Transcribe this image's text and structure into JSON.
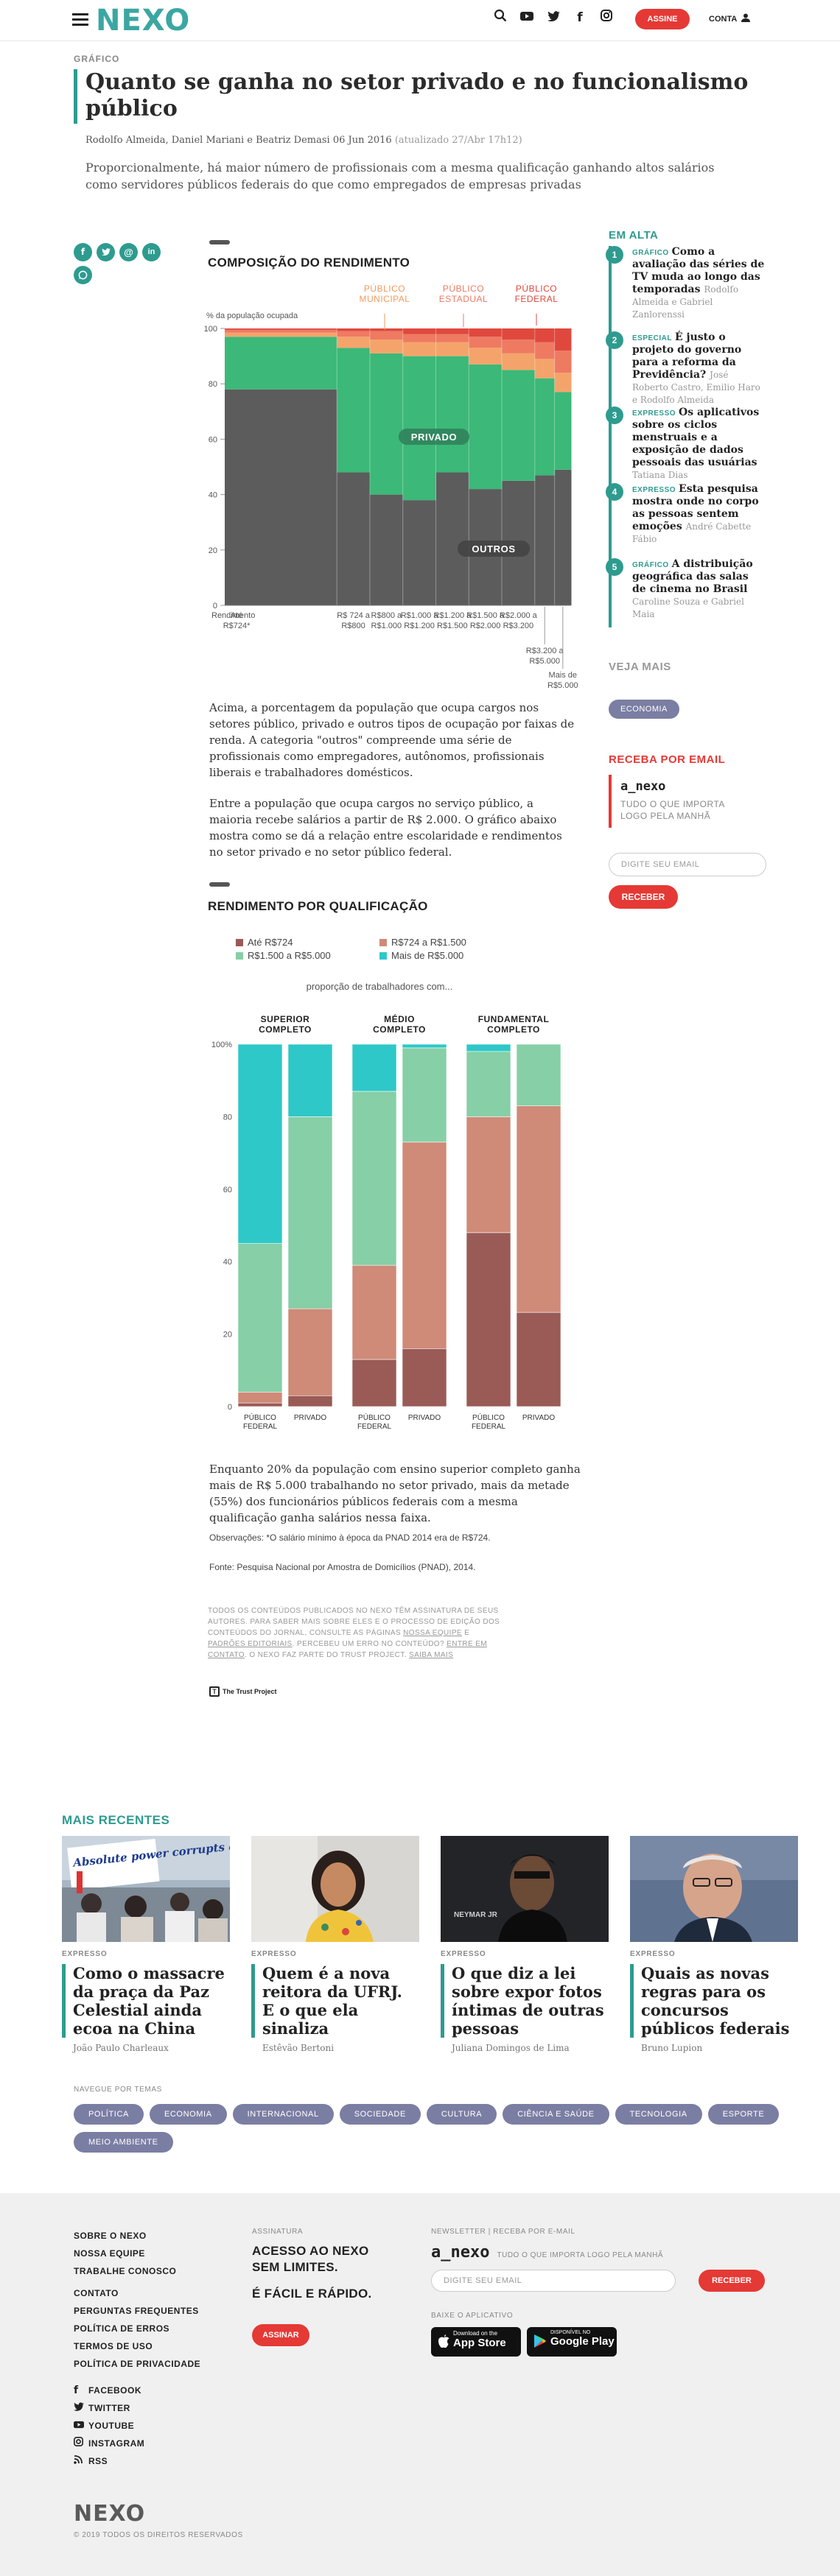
{
  "header": {
    "logo": "NEXO",
    "subscribe": "ASSINE",
    "account": "CONTA"
  },
  "article": {
    "kicker": "GRÁFICO",
    "title": "Quanto se ganha no setor privado e no funcionalismo público",
    "authors": "Rodolfo Almeida, Daniel Mariani e Beatriz Demasi",
    "date": "06 Jun 2016",
    "updated": "(atualizado 27/Abr 17h12)",
    "lead": "Proporcionalmente, há maior número de profissionais com a mesma qualificação ganhando altos salários como servidores públicos federais do que como empregados de empresas privadas",
    "chart1_title": "COMPOSIÇÃO DO RENDIMENTO",
    "chart2_title": "RENDIMENTO POR QUALIFICAÇÃO",
    "para1": "Acima, a porcentagem da população que ocupa cargos nos setores público, privado e outros tipos de ocupação por faixas de renda. A categoria \"outros\" compreende uma série de profissionais como empregadores, autônomos, profissionais liberais e trabalhadores domésticos.",
    "para2": "Entre a população que ocupa cargos no serviço público, a maioria recebe salários a partir de R$ 2.000. O gráfico abaixo mostra como se dá a relação entre escolaridade e rendimentos no setor privado e no setor público federal.",
    "para3": "Enquanto 20% da população com ensino superior completo ganha mais de R$ 5.000 trabalhando no setor privado, mais da metade (55%) dos funcionários públicos federais com a mesma qualificação ganha salários nessa faixa.",
    "obs": "Observações: *O salário mínimo à época da PNAD 2014 era de R$724.",
    "source": "Fonte: Pesquisa Nacional por Amostra de Domicílios (PNAD), 2014.",
    "legal_a": "TODOS OS CONTEÚDOS PUBLICADOS NO NEXO TÊM ASSINATURA DE SEUS AUTORES. PARA SABER MAIS SOBRE ELES E O PROCESSO DE EDIÇÃO DOS CONTEÚDOS DO JORNAL, CONSULTE AS PÁGINAS",
    "legal_link1": "NOSSA EQUIPE",
    "legal_b": "E",
    "legal_link2": "PADRÕES EDITORIAIS",
    "legal_c": ". PERCEBEU UM ERRO NO CONTEÚDO?",
    "legal_link3": "ENTRE EM CONTATO",
    "legal_d": ". O NEXO FAZ PARTE DO TRUST PROJECT.",
    "legal_link4": "SAIBA MAIS",
    "trust": "The Trust Project"
  },
  "chart_data": [
    {
      "type": "area",
      "title": "COMPOSIÇÃO DO RENDIMENTO",
      "ylabel": "% da população ocupada",
      "xlabel": "Rendimento",
      "ylim": [
        0,
        100
      ],
      "yticks": [
        0,
        20,
        40,
        60,
        80,
        100
      ],
      "categories": [
        "Até R$724*",
        "R$ 724 a R$800",
        "R$800 a R$1.000",
        "R$1.000 a R$1.200",
        "R$1.200 a R$1.500",
        "R$1.500 a R$2.000",
        "R$2.000 a R$3.200",
        "R$3.200 a R$5.000",
        "Mais de R$5.000"
      ],
      "widths": [
        3.4,
        1,
        1,
        1,
        1,
        1,
        1,
        0.6,
        0.5
      ],
      "series": [
        {
          "name": "OUTROS",
          "color": "#5c5c5c",
          "values": [
            78,
            48,
            40,
            38,
            48,
            42,
            45,
            47,
            49
          ]
        },
        {
          "name": "PRIVADO",
          "color": "#3cb878",
          "values": [
            19,
            45,
            51,
            52,
            42,
            45,
            40,
            35,
            28
          ]
        },
        {
          "name": "PÚBLICO MUNICIPAL",
          "color": "#f4a46a",
          "values": [
            1.5,
            4,
            5,
            5,
            5,
            6,
            6,
            7,
            7
          ]
        },
        {
          "name": "PÚBLICO ESTADUAL",
          "color": "#ee7a62",
          "values": [
            1,
            2,
            3,
            3,
            3,
            4,
            5,
            6,
            8
          ]
        },
        {
          "name": "PÚBLICO FEDERAL",
          "color": "#e0483e",
          "values": [
            0.5,
            1,
            1,
            2,
            2,
            3,
            4,
            5,
            8
          ]
        }
      ]
    },
    {
      "type": "bar",
      "title": "RENDIMENTO POR QUALIFICAÇÃO",
      "subtitle": "proporção de trabalhadores com...",
      "ylim": [
        0,
        100
      ],
      "yticks": [
        0,
        20,
        40,
        60,
        80,
        100
      ],
      "groups": [
        "SUPERIOR COMPLETO",
        "MÉDIO COMPLETO",
        "FUNDAMENTAL COMPLETO"
      ],
      "categories": [
        "PÚBLICO FEDERAL",
        "PRIVADO",
        "PÚBLICO FEDERAL",
        "PRIVADO",
        "PÚBLICO FEDERAL",
        "PRIVADO"
      ],
      "series": [
        {
          "name": "Até R$724",
          "color": "#9a5a55",
          "values": [
            1,
            3,
            13,
            16,
            48,
            26
          ]
        },
        {
          "name": "R$724 a R$1.500",
          "color": "#cf8a78",
          "values": [
            3,
            24,
            26,
            57,
            32,
            57
          ]
        },
        {
          "name": "R$1.500 a R$5.000",
          "color": "#86cfa7",
          "values": [
            41,
            53,
            48,
            26,
            18,
            17
          ]
        },
        {
          "name": "Mais de R$5.000",
          "color": "#2ec8c8",
          "values": [
            55,
            20,
            13,
            1,
            2,
            0
          ]
        }
      ]
    }
  ],
  "chart1_labels": {
    "municipal": "PÚBLICO MUNICIPAL",
    "estadual": "PÚBLICO ESTADUAL",
    "federal": "PÚBLICO FEDERAL",
    "privado": "PRIVADO",
    "outros": "OUTROS"
  },
  "sidebar": {
    "heading": "EM ALTA",
    "items": [
      {
        "num": "1",
        "kind": "GRÁFICO",
        "title": "Como a avaliação das séries de TV muda ao longo das temporadas",
        "author": "Rodolfo Almeida e Gabriel Zanlorenssi"
      },
      {
        "num": "2",
        "kind": "ESPECIAL",
        "title": "É justo o projeto do governo para a reforma da Previdência?",
        "author": "José Roberto Castro, Emilio Haro e Rodolfo Almeida"
      },
      {
        "num": "3",
        "kind": "EXPRESSO",
        "title": "Os aplicativos sobre os ciclos menstruais e a exposição de dados pessoais das usuárias",
        "author": "Tatiana Dias"
      },
      {
        "num": "4",
        "kind": "EXPRESSO",
        "title": "Esta pesquisa mostra onde no corpo as pessoas sentem emoções",
        "author": "André Cabette Fábio"
      },
      {
        "num": "5",
        "kind": "GRÁFICO",
        "title": "A distribuição geográfica das salas de cinema no Brasil",
        "author": "Caroline Souza e Gabriel Maia"
      }
    ],
    "more_heading": "VEJA MAIS",
    "more_tag": "ECONOMIA",
    "email_heading": "RECEBA POR EMAIL",
    "newsletter_name": "a_nexo",
    "newsletter_desc": "TUDO O QUE IMPORTA LOGO PELA MANHÃ",
    "email_placeholder": "DIGITE SEU EMAIL",
    "receive": "RECEBER"
  },
  "recentes": {
    "heading": "MAIS RECENTES",
    "items": [
      {
        "kind": "EXPRESSO",
        "title": "Como o massacre da praça da Paz Celestial ainda ecoa na China",
        "author": "João Paulo Charleaux",
        "img_text": "Absolute power corrupts absolutely"
      },
      {
        "kind": "EXPRESSO",
        "title": "Quem é a nova reitora da UFRJ. E o que ela sinaliza",
        "author": "Estêvão Bertoni"
      },
      {
        "kind": "EXPRESSO",
        "title": "O que diz a lei sobre expor fotos íntimas de outras pessoas",
        "author": "Juliana Domingos de Lima",
        "img_text": "NEYMAR JR"
      },
      {
        "kind": "EXPRESSO",
        "title": "Quais as novas regras para os concursos públicos federais",
        "author": "Bruno Lupion"
      }
    ],
    "themes_heading": "NAVEGUE POR TEMAS",
    "themes": [
      "POLÍTICA",
      "ECONOMIA",
      "INTERNACIONAL",
      "SOCIEDADE",
      "CULTURA",
      "CIÊNCIA E SAÚDE",
      "TECNOLOGIA",
      "ESPORTE",
      "MEIO AMBIENTE"
    ]
  },
  "footer": {
    "links1": [
      "SOBRE O NEXO",
      "NOSSA EQUIPE",
      "TRABALHE CONOSCO"
    ],
    "links2": [
      "CONTATO",
      "PERGUNTAS FREQUENTES",
      "POLÍTICA DE ERROS",
      "TERMOS DE USO",
      "POLÍTICA DE PRIVACIDADE"
    ],
    "social": [
      "FACEBOOK",
      "TWITTER",
      "YOUTUBE",
      "INSTAGRAM",
      "RSS"
    ],
    "sub_heading": "ASSINATURA",
    "sub_line1": "ACESSO AO NEXO SEM LIMITES.",
    "sub_line2": "É FÁCIL E RÁPIDO.",
    "sub_button": "ASSINAR",
    "news_heading": "NEWSLETTER | RECEBA POR E-MAIL",
    "news_name": "a_nexo",
    "news_desc": "TUDO O QUE IMPORTA LOGO PELA MANHÃ",
    "news_placeholder": "DIGITE SEU EMAIL",
    "news_button": "RECEBER",
    "app_heading": "BAIXE O APLICATIVO",
    "appstore_small": "Download on the",
    "appstore": "App Store",
    "gplay_small": "DISPONÍVEL NO",
    "gplay": "Google Play",
    "logo": "NEXO",
    "copyright": "© 2019 TODOS OS DIREITOS RESERVADOS"
  }
}
